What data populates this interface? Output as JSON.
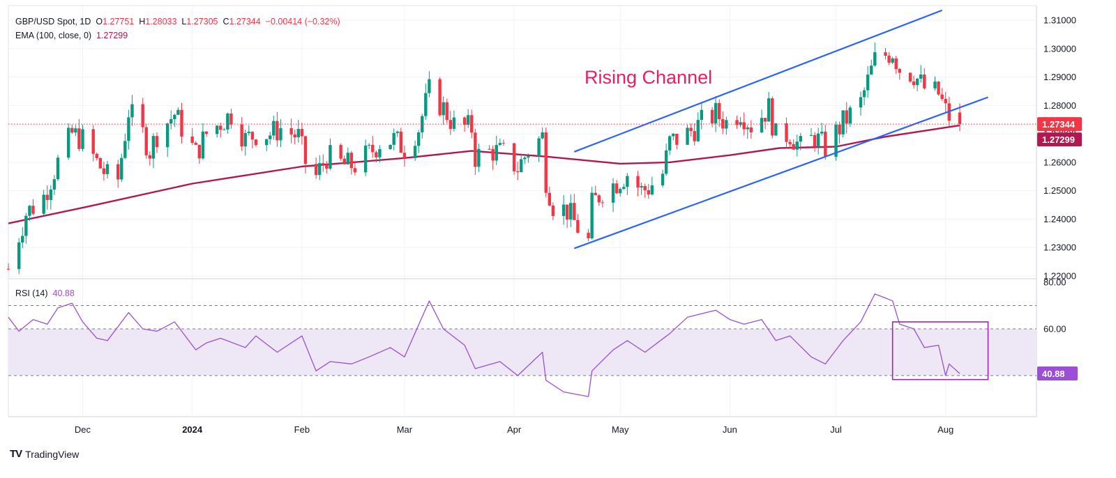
{
  "legend": {
    "symbol": "GBP/USD Spot, 1D",
    "open_label": "O",
    "open": "1.27751",
    "high_label": "H",
    "high": "1.28033",
    "low_label": "L",
    "low": "1.27305",
    "close_label": "C",
    "close": "1.27344",
    "change": "−0.00414 (−0.32%)",
    "ema_label": "EMA (100, close, 0)",
    "ema_value": "1.27299",
    "rsi_label": "RSI (14)",
    "rsi_value": "40.88"
  },
  "annotation": {
    "text": "Rising Channel"
  },
  "brand": {
    "logo": "TV",
    "name": "TradingView"
  },
  "colors": {
    "up": "#089981",
    "down": "#f23645",
    "ema": "#b2174e",
    "channel": "#2962ff",
    "rsi": "#9c4fd4",
    "rsi_band": "#ede7f6",
    "grid": "#f0f3fa",
    "axis_text": "#131722"
  },
  "chart_data": [
    {
      "type": "candlestick",
      "title": "GBP/USD Spot, 1D",
      "x_labels": [
        "Dec",
        "2024",
        "Feb",
        "Mar",
        "Apr",
        "May",
        "Jun",
        "Jul",
        "Aug"
      ],
      "x_label_dates": [
        "2023-12-01",
        "2024-01-01",
        "2024-02-01",
        "2024-03-01",
        "2024-04-01",
        "2024-05-01",
        "2024-06-01",
        "2024-07-01",
        "2024-08-01"
      ],
      "date_range": [
        "2023-11-10",
        "2024-08-05"
      ],
      "y_ticks": [
        1.22,
        1.23,
        1.24,
        1.25,
        1.26,
        1.27,
        1.28,
        1.29,
        1.3,
        1.31
      ],
      "ylim": [
        1.218,
        1.3135
      ],
      "grid": true,
      "close_series": [
        [
          "2023-11-10",
          1.2225
        ],
        [
          "2023-11-15",
          1.242
        ],
        [
          "2023-11-20",
          1.248
        ],
        [
          "2023-11-24",
          1.26
        ],
        [
          "2023-11-28",
          1.27
        ],
        [
          "2023-12-01",
          1.268
        ],
        [
          "2023-12-05",
          1.26
        ],
        [
          "2023-12-08",
          1.255
        ],
        [
          "2023-12-11",
          1.254
        ],
        [
          "2023-12-14",
          1.278
        ],
        [
          "2023-12-18",
          1.27
        ],
        [
          "2023-12-20",
          1.264
        ],
        [
          "2023-12-22",
          1.27
        ],
        [
          "2023-12-27",
          1.277
        ],
        [
          "2024-01-02",
          1.263
        ],
        [
          "2024-01-05",
          1.27
        ],
        [
          "2024-01-09",
          1.274
        ],
        [
          "2024-01-12",
          1.277
        ],
        [
          "2024-01-16",
          1.268
        ],
        [
          "2024-01-19",
          1.27
        ],
        [
          "2024-01-23",
          1.27
        ],
        [
          "2024-01-26",
          1.272
        ],
        [
          "2024-01-31",
          1.269
        ],
        [
          "2024-02-02",
          1.26
        ],
        [
          "2024-02-05",
          1.255
        ],
        [
          "2024-02-08",
          1.262
        ],
        [
          "2024-02-13",
          1.259
        ],
        [
          "2024-02-16",
          1.259
        ],
        [
          "2024-02-20",
          1.263
        ],
        [
          "2024-02-23",
          1.267
        ],
        [
          "2024-02-27",
          1.268
        ],
        [
          "2024-03-01",
          1.265
        ],
        [
          "2024-03-05",
          1.272
        ],
        [
          "2024-03-08",
          1.285
        ],
        [
          "2024-03-12",
          1.279
        ],
        [
          "2024-03-15",
          1.273
        ],
        [
          "2024-03-20",
          1.272
        ],
        [
          "2024-03-21",
          1.262
        ],
        [
          "2024-03-26",
          1.264
        ],
        [
          "2024-03-29",
          1.263
        ],
        [
          "2024-04-02",
          1.258
        ],
        [
          "2024-04-05",
          1.264
        ],
        [
          "2024-04-09",
          1.269
        ],
        [
          "2024-04-10",
          1.254
        ],
        [
          "2024-04-12",
          1.245
        ],
        [
          "2024-04-16",
          1.243
        ],
        [
          "2024-04-19",
          1.237
        ],
        [
          "2024-04-22",
          1.232
        ],
        [
          "2024-04-23",
          1.245
        ],
        [
          "2024-04-26",
          1.25
        ],
        [
          "2024-04-30",
          1.253
        ],
        [
          "2024-05-03",
          1.256
        ],
        [
          "2024-05-07",
          1.25
        ],
        [
          "2024-05-09",
          1.251
        ],
        [
          "2024-05-13",
          1.256
        ],
        [
          "2024-05-15",
          1.267
        ],
        [
          "2024-05-20",
          1.27
        ],
        [
          "2024-05-24",
          1.274
        ],
        [
          "2024-05-28",
          1.277
        ],
        [
          "2024-05-31",
          1.274
        ],
        [
          "2024-06-04",
          1.278
        ],
        [
          "2024-06-07",
          1.273
        ],
        [
          "2024-06-12",
          1.279
        ],
        [
          "2024-06-14",
          1.269
        ],
        [
          "2024-06-18",
          1.27
        ],
        [
          "2024-06-21",
          1.265
        ],
        [
          "2024-06-25",
          1.269
        ],
        [
          "2024-06-28",
          1.265
        ],
        [
          "2024-07-03",
          1.274
        ],
        [
          "2024-07-08",
          1.281
        ],
        [
          "2024-07-12",
          1.296
        ],
        [
          "2024-07-17",
          1.299
        ],
        [
          "2024-07-19",
          1.293
        ],
        [
          "2024-07-23",
          1.291
        ],
        [
          "2024-07-26",
          1.286
        ],
        [
          "2024-07-30",
          1.284
        ],
        [
          "2024-08-01",
          1.278
        ],
        [
          "2024-08-02",
          1.276
        ],
        [
          "2024-08-05",
          1.27344
        ]
      ],
      "ema_100": {
        "name": "EMA (100, close, 0)",
        "points": [
          [
            "2023-11-10",
            1.2385
          ],
          [
            "2023-12-01",
            1.244
          ],
          [
            "2024-01-01",
            1.2525
          ],
          [
            "2024-02-01",
            1.2585
          ],
          [
            "2024-03-01",
            1.2615
          ],
          [
            "2024-03-20",
            1.264
          ],
          [
            "2024-04-10",
            1.262
          ],
          [
            "2024-05-01",
            1.2595
          ],
          [
            "2024-05-15",
            1.26
          ],
          [
            "2024-06-01",
            1.2625
          ],
          [
            "2024-06-15",
            1.265
          ],
          [
            "2024-07-01",
            1.2655
          ],
          [
            "2024-07-15",
            1.269
          ],
          [
            "2024-08-05",
            1.27299
          ]
        ]
      },
      "channel": {
        "upper": [
          [
            "2024-04-18",
            1.2637
          ],
          [
            "2024-07-31",
            1.3135
          ]
        ],
        "lower": [
          [
            "2024-04-18",
            1.2297
          ],
          [
            "2024-08-13",
            1.2829
          ]
        ]
      },
      "price_line": 1.27344,
      "price_badges": [
        {
          "label": "1.27344",
          "value": 1.27344
        },
        {
          "label": "1.27299",
          "value": 1.27299
        }
      ]
    },
    {
      "type": "line",
      "title": "RSI (14)",
      "y_ticks_labels": [
        "80.00",
        "60.00"
      ],
      "levels": [
        70,
        60,
        40
      ],
      "ylim": [
        30,
        80
      ],
      "value": 40.88,
      "series": [
        {
          "name": "RSI (14)",
          "points": [
            [
              "2023-11-10",
              65
            ],
            [
              "2023-11-13",
              59
            ],
            [
              "2023-11-17",
              64
            ],
            [
              "2023-11-21",
              62
            ],
            [
              "2023-11-24",
              69
            ],
            [
              "2023-11-28",
              71
            ],
            [
              "2023-12-01",
              63
            ],
            [
              "2023-12-05",
              56
            ],
            [
              "2023-12-08",
              55
            ],
            [
              "2023-12-14",
              67
            ],
            [
              "2023-12-18",
              60
            ],
            [
              "2023-12-22",
              59
            ],
            [
              "2023-12-27",
              63
            ],
            [
              "2024-01-02",
              51
            ],
            [
              "2024-01-05",
              54
            ],
            [
              "2024-01-09",
              56
            ],
            [
              "2024-01-16",
              52
            ],
            [
              "2024-01-19",
              57
            ],
            [
              "2024-01-25",
              50
            ],
            [
              "2024-02-01",
              57
            ],
            [
              "2024-02-05",
              42
            ],
            [
              "2024-02-09",
              46
            ],
            [
              "2024-02-15",
              45
            ],
            [
              "2024-02-20",
              48
            ],
            [
              "2024-02-26",
              52
            ],
            [
              "2024-03-01",
              48
            ],
            [
              "2024-03-08",
              72
            ],
            [
              "2024-03-12",
              60
            ],
            [
              "2024-03-18",
              53
            ],
            [
              "2024-03-21",
              43
            ],
            [
              "2024-03-28",
              46
            ],
            [
              "2024-04-02",
              40
            ],
            [
              "2024-04-09",
              50
            ],
            [
              "2024-04-10",
              38
            ],
            [
              "2024-04-15",
              33
            ],
            [
              "2024-04-22",
              31
            ],
            [
              "2024-04-23",
              42
            ],
            [
              "2024-04-29",
              51
            ],
            [
              "2024-05-03",
              55
            ],
            [
              "2024-05-08",
              50
            ],
            [
              "2024-05-15",
              58
            ],
            [
              "2024-05-20",
              65
            ],
            [
              "2024-05-28",
              68
            ],
            [
              "2024-06-01",
              64
            ],
            [
              "2024-06-05",
              62
            ],
            [
              "2024-06-10",
              64
            ],
            [
              "2024-06-14",
              55
            ],
            [
              "2024-06-18",
              57
            ],
            [
              "2024-06-24",
              48
            ],
            [
              "2024-06-28",
              45
            ],
            [
              "2024-07-03",
              55
            ],
            [
              "2024-07-08",
              63
            ],
            [
              "2024-07-12",
              75
            ],
            [
              "2024-07-17",
              72
            ],
            [
              "2024-07-19",
              62
            ],
            [
              "2024-07-23",
              60
            ],
            [
              "2024-07-26",
              52
            ],
            [
              "2024-07-30",
              53
            ],
            [
              "2024-08-01",
              40
            ],
            [
              "2024-08-02",
              45
            ],
            [
              "2024-08-05",
              40.88
            ]
          ]
        }
      ],
      "highlight_box": {
        "x": [
          "2024-07-17",
          "2024-08-13"
        ],
        "y": [
          38.3,
          63.0
        ]
      }
    }
  ]
}
